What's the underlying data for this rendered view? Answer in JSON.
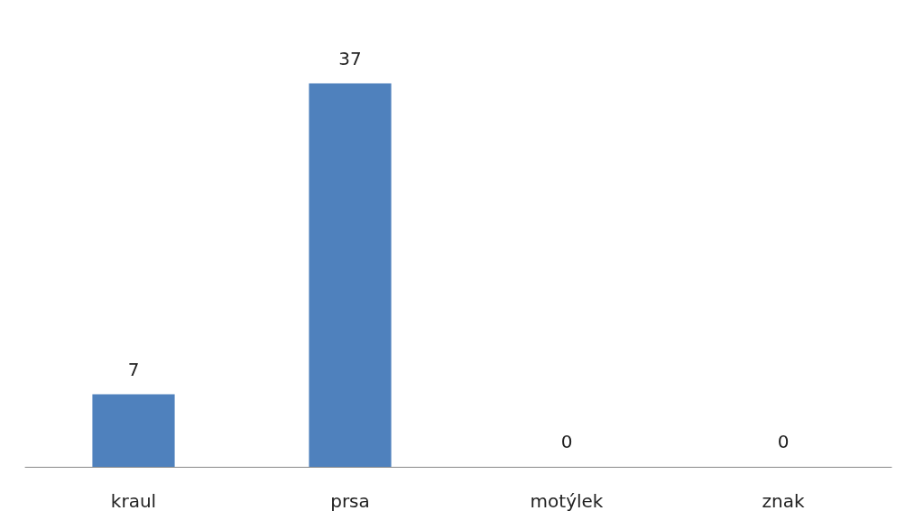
{
  "chart_data": {
    "type": "bar",
    "categories": [
      "kraul",
      "prsa",
      "motýlek",
      "znak"
    ],
    "values": [
      7,
      37,
      0,
      0
    ],
    "color": "#4f81bd",
    "data_labels": true
  }
}
